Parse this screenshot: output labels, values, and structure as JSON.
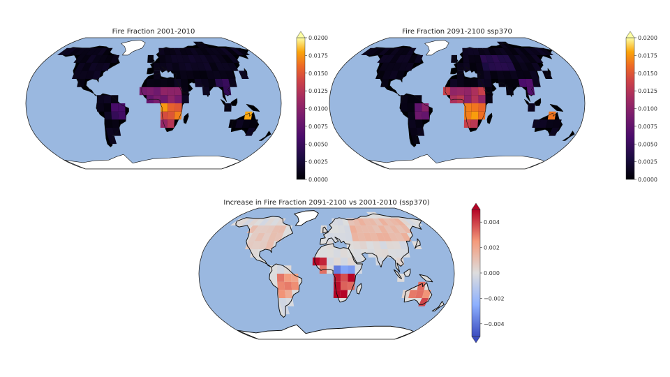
{
  "figure": {
    "panels": [
      {
        "title": "Fire Fraction 2001-2010",
        "colormap": "inferno",
        "range": [
          0,
          0.02
        ],
        "colorbar_ticks": [
          "0.0000",
          "0.0025",
          "0.0050",
          "0.0075",
          "0.0100",
          "0.0125",
          "0.0150",
          "0.0175",
          "0.0200"
        ],
        "colorbar_extend": "max",
        "hotspots": [
          {
            "region": "Tropical Africa (Sahel band)",
            "lon": [
              -15,
              40
            ],
            "lat": [
              3,
              15
            ],
            "level": 0.011
          },
          {
            "region": "Central-southern Africa",
            "lon": [
              12,
              35
            ],
            "lat": [
              -18,
              3
            ],
            "level": 0.018
          },
          {
            "region": "Southern Africa",
            "lon": [
              15,
              32
            ],
            "lat": [
              -25,
              -18
            ],
            "level": 0.013
          },
          {
            "region": "Northern Australia",
            "lon": [
              125,
              145
            ],
            "lat": [
              -20,
              -12
            ],
            "level": 0.02
          },
          {
            "region": "Central South America",
            "lon": [
              -60,
              -40
            ],
            "lat": [
              -22,
              -5
            ],
            "level": 0.006
          },
          {
            "region": "Southeast Asia",
            "lon": [
              95,
              110
            ],
            "lat": [
              10,
              25
            ],
            "level": 0.005
          },
          {
            "region": "Central Asia",
            "lon": [
              45,
              85
            ],
            "lat": [
              40,
              55
            ],
            "level": 0.002
          }
        ]
      },
      {
        "title": "Fire Fraction 2091-2100 ssp370",
        "colormap": "inferno",
        "range": [
          0,
          0.02
        ],
        "colorbar_ticks": [
          "0.0000",
          "0.0025",
          "0.0050",
          "0.0075",
          "0.0100",
          "0.0125",
          "0.0150",
          "0.0175",
          "0.0200"
        ],
        "colorbar_extend": "max",
        "hotspots": [
          {
            "region": "Tropical Africa (Sahel band)",
            "lon": [
              -15,
              40
            ],
            "lat": [
              3,
              15
            ],
            "level": 0.014
          },
          {
            "region": "Central-southern Africa",
            "lon": [
              12,
              35
            ],
            "lat": [
              -18,
              3
            ],
            "level": 0.019
          },
          {
            "region": "Southern Africa",
            "lon": [
              15,
              32
            ],
            "lat": [
              -25,
              -18
            ],
            "level": 0.016
          },
          {
            "region": "Northern Australia",
            "lon": [
              125,
              145
            ],
            "lat": [
              -20,
              -12
            ],
            "level": 0.02
          },
          {
            "region": "Central South America",
            "lon": [
              -60,
              -40
            ],
            "lat": [
              -22,
              -5
            ],
            "level": 0.01
          },
          {
            "region": "Mexico / Central America",
            "lon": [
              -105,
              -85
            ],
            "lat": [
              10,
              22
            ],
            "level": 0.007
          },
          {
            "region": "Southeast Asia",
            "lon": [
              95,
              110
            ],
            "lat": [
              10,
              25
            ],
            "level": 0.007
          },
          {
            "region": "Central Asia",
            "lon": [
              45,
              85
            ],
            "lat": [
              40,
              55
            ],
            "level": 0.004
          }
        ]
      },
      {
        "title": "Increase in Fire Fraction 2091-2100 vs 2001-2010 (ssp370)",
        "colormap": "coolwarm",
        "range": [
          -0.005,
          0.005
        ],
        "colorbar_ticks": [
          "0.004",
          "0.002",
          "0.000",
          "−0.002",
          "−0.004"
        ],
        "colorbar_extend": "both",
        "hotspots": [
          {
            "region": "Northern Eurasia",
            "lon": [
              40,
              140
            ],
            "lat": [
              45,
              70
            ],
            "level": 0.0015
          },
          {
            "region": "North America",
            "lon": [
              -125,
              -70
            ],
            "lat": [
              30,
              60
            ],
            "level": 0.001
          },
          {
            "region": "Mexico / Central America",
            "lon": [
              -105,
              -85
            ],
            "lat": [
              10,
              22
            ],
            "level": 0.004
          },
          {
            "region": "West Africa",
            "lon": [
              -15,
              -5
            ],
            "lat": [
              5,
              15
            ],
            "level": 0.005
          },
          {
            "region": "Central Africa",
            "lon": [
              10,
              35
            ],
            "lat": [
              -2,
              12
            ],
            "level": -0.004
          },
          {
            "region": "Southern Africa",
            "lon": [
              15,
              35
            ],
            "lat": [
              -25,
              -5
            ],
            "level": 0.005
          },
          {
            "region": "South America",
            "lon": [
              -65,
              -40
            ],
            "lat": [
              -30,
              -5
            ],
            "level": 0.003
          },
          {
            "region": "Australia",
            "lon": [
              120,
              150
            ],
            "lat": [
              -35,
              -15
            ],
            "level": 0.004
          }
        ]
      }
    ]
  }
}
